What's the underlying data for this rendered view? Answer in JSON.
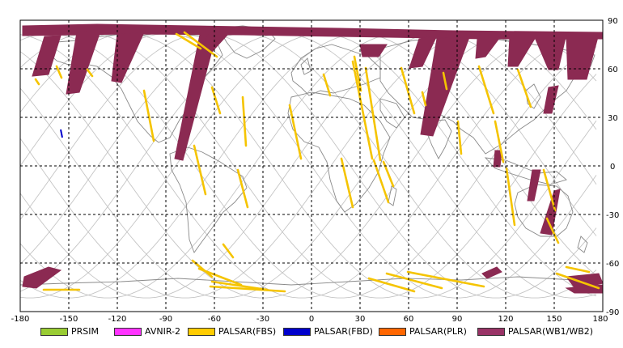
{
  "map": {
    "x_ticks": [
      "-180",
      "-150",
      "-120",
      "-90",
      "-60",
      "-30",
      "0",
      "30",
      "60",
      "90",
      "120",
      "150",
      "180"
    ],
    "y_ticks": [
      "90",
      "60",
      "30",
      "0",
      "-30",
      "-60",
      "-90"
    ],
    "colors": {
      "orbit": "#bdbdbd",
      "coast": "#8a8a8a",
      "grid": "#000000",
      "wide": "#8b2a52",
      "fbs": "#f5c400",
      "fbd": "#0000cc"
    }
  },
  "legend": [
    {
      "label": "PRSIM",
      "color": "#99cc33"
    },
    {
      "label": "AVNIR-2",
      "color": "#ff33ff"
    },
    {
      "label": "PALSAR(FBS)",
      "color": "#ffcc00"
    },
    {
      "label": "PALSAR(FBD)",
      "color": "#0000cc"
    },
    {
      "label": "PALSAR(PLR)",
      "color": "#ff6600"
    },
    {
      "label": "PALSAR(WB1/WB2)",
      "color": "#993366"
    }
  ]
}
